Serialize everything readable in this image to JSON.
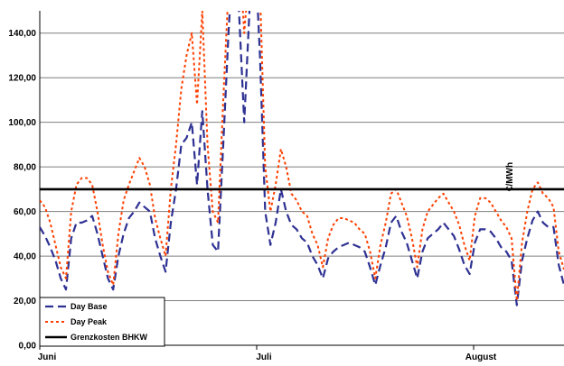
{
  "chart_data": {
    "type": "line",
    "title": "",
    "xlabel": "",
    "ylabel": "€/MWh",
    "ylim": [
      0,
      150
    ],
    "yticks": [
      "0,00",
      "20,00",
      "40,00",
      "60,00",
      "80,00",
      "100,00",
      "120,00",
      "140,00"
    ],
    "xticks": [
      "Juni",
      "Juli",
      "August"
    ],
    "grid": true,
    "legend_position": "bottom-left",
    "colors": {
      "day_base": "#2e3192",
      "day_peak": "#ff4000",
      "grenzkosten": "#000000",
      "grid": "#7f7f7f"
    },
    "series": [
      {
        "name": "Day Base",
        "values": [
          53,
          49,
          44,
          38,
          30,
          25,
          48,
          55,
          55,
          56,
          58,
          50,
          40,
          30,
          25,
          40,
          50,
          57,
          60,
          64,
          62,
          60,
          48,
          40,
          33,
          55,
          70,
          90,
          93,
          100,
          72,
          105,
          70,
          45,
          42,
          90,
          140,
          180,
          150,
          100,
          150,
          180,
          130,
          60,
          45,
          55,
          70,
          60,
          54,
          52,
          48,
          46,
          40,
          36,
          30,
          39,
          42,
          44,
          45,
          46,
          45,
          44,
          42,
          35,
          27,
          36,
          44,
          55,
          58,
          51,
          46,
          38,
          30,
          42,
          48,
          50,
          52,
          55,
          52,
          49,
          43,
          36,
          32,
          46,
          52,
          52,
          51,
          48,
          44,
          42,
          38,
          18,
          38,
          48,
          56,
          60,
          55,
          53,
          53,
          36,
          27
        ]
      },
      {
        "name": "Day Peak",
        "values": [
          65,
          62,
          55,
          45,
          35,
          30,
          60,
          72,
          75,
          75,
          72,
          60,
          45,
          33,
          27,
          50,
          65,
          72,
          78,
          84,
          80,
          72,
          57,
          48,
          40,
          70,
          90,
          115,
          130,
          140,
          108,
          150,
          90,
          60,
          55,
          110,
          160,
          200,
          180,
          140,
          170,
          200,
          160,
          80,
          60,
          72,
          88,
          80,
          68,
          65,
          60,
          58,
          50,
          45,
          35,
          48,
          54,
          57,
          57,
          56,
          55,
          52,
          50,
          42,
          30,
          45,
          55,
          68,
          70,
          64,
          58,
          48,
          35,
          52,
          60,
          63,
          66,
          68,
          64,
          60,
          54,
          45,
          38,
          58,
          66,
          66,
          64,
          60,
          56,
          53,
          48,
          20,
          46,
          60,
          70,
          73,
          68,
          66,
          62,
          42,
          34
        ]
      },
      {
        "name": "Grenzkosten BHKW",
        "values": [
          70,
          70
        ]
      }
    ]
  }
}
